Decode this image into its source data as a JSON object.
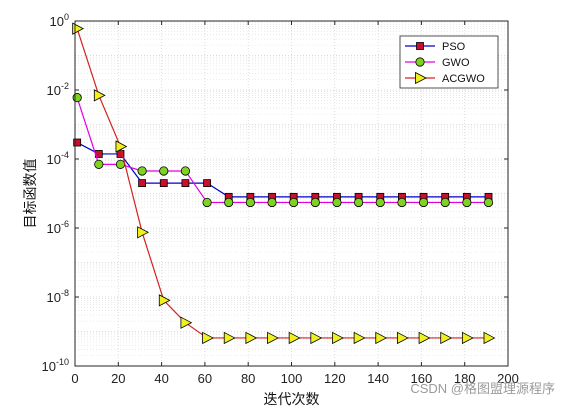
{
  "chart_data": {
    "type": "line",
    "title": "",
    "xlabel": "迭代次数",
    "ylabel": "目标函数值",
    "xlim": [
      0,
      200
    ],
    "ylim": [
      1e-10,
      1
    ],
    "yscale": "log",
    "grid": true,
    "x_ticks": [
      0,
      20,
      40,
      60,
      80,
      100,
      120,
      140,
      160,
      180,
      200
    ],
    "y_ticks": [
      {
        "base": "10",
        "exp": "0"
      },
      {
        "base": "10",
        "exp": "-2"
      },
      {
        "base": "10",
        "exp": "-4"
      },
      {
        "base": "10",
        "exp": "-6"
      },
      {
        "base": "10",
        "exp": "-8"
      },
      {
        "base": "10",
        "exp": "-10"
      }
    ],
    "legend_position": "top-right",
    "x": [
      1,
      11,
      21,
      31,
      41,
      51,
      61,
      71,
      81,
      91,
      101,
      111,
      121,
      131,
      141,
      151,
      161,
      171,
      181,
      191
    ],
    "series": [
      {
        "name": "PSO",
        "color": "#0000c8",
        "marker": "square",
        "marker_fill": "#c8102e",
        "values": [
          0.0003,
          0.00014,
          0.00014,
          2e-05,
          2e-05,
          2e-05,
          2e-05,
          8e-06,
          8e-06,
          8e-06,
          8e-06,
          8e-06,
          8e-06,
          8e-06,
          8e-06,
          8e-06,
          8e-06,
          8e-06,
          8e-06,
          8e-06
        ]
      },
      {
        "name": "GWO",
        "color": "#e000e0",
        "marker": "circle",
        "marker_fill": "#7ed321",
        "values": [
          0.006,
          7e-05,
          7e-05,
          4.5e-05,
          4.5e-05,
          4.5e-05,
          5.5e-06,
          5.5e-06,
          5.5e-06,
          5.5e-06,
          5.5e-06,
          5.5e-06,
          5.5e-06,
          5.5e-06,
          5.5e-06,
          5.5e-06,
          5.5e-06,
          5.5e-06,
          5.5e-06,
          5.5e-06
        ]
      },
      {
        "name": "ACGWO",
        "color": "#d62020",
        "marker": "triangle-right",
        "marker_fill": "#f0f020",
        "values": [
          0.6,
          0.007,
          0.00023,
          7.5e-07,
          8e-09,
          1.8e-09,
          6.5e-10,
          6.5e-10,
          6.5e-10,
          6.5e-10,
          6.5e-10,
          6.5e-10,
          6.5e-10,
          6.5e-10,
          6.5e-10,
          6.5e-10,
          6.5e-10,
          6.5e-10,
          6.5e-10,
          6.5e-10
        ]
      }
    ]
  },
  "watermark": "CSDN @格图盟理源程序"
}
